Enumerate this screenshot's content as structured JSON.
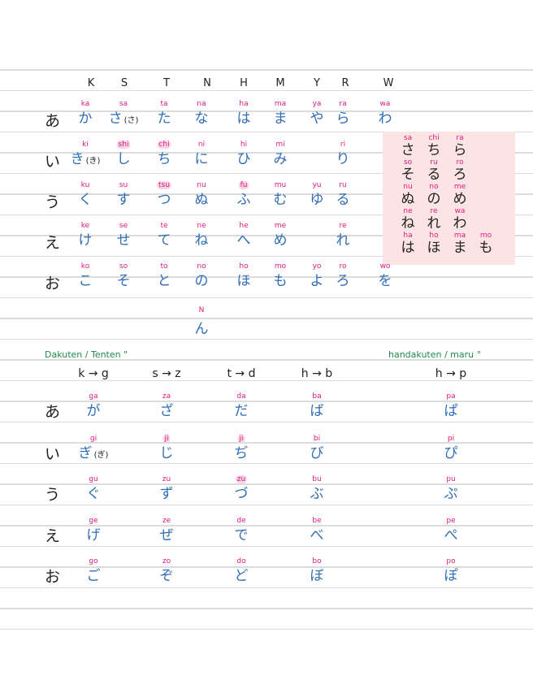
{
  "colors": {
    "kana": "#2f6db5",
    "romaji": "#e0197d",
    "label": "#1f8a4c",
    "highlight_box": "#fde4e4"
  },
  "top_table": {
    "column_headers": [
      "K",
      "S",
      "T",
      "N",
      "H",
      "M",
      "Y",
      "R",
      "W"
    ],
    "rows": [
      {
        "label": "あ",
        "cells": [
          {
            "romaji": "ka",
            "kana": "か"
          },
          {
            "romaji": "sa",
            "kana": "さ",
            "note": "(さ)"
          },
          {
            "romaji": "ta",
            "kana": "た"
          },
          {
            "romaji": "na",
            "kana": "な"
          },
          {
            "romaji": "ha",
            "kana": "は"
          },
          {
            "romaji": "ma",
            "kana": "ま"
          },
          {
            "romaji": "ya",
            "kana": "や"
          },
          {
            "romaji": "ra",
            "kana": "ら"
          },
          {
            "romaji": "wa",
            "kana": "わ"
          }
        ]
      },
      {
        "label": "い",
        "cells": [
          {
            "romaji": "ki",
            "kana": "き",
            "note": "(き)"
          },
          {
            "romaji": "shi",
            "kana": "し",
            "highlight": true
          },
          {
            "romaji": "chi",
            "kana": "ち",
            "highlight": true
          },
          {
            "romaji": "ni",
            "kana": "に"
          },
          {
            "romaji": "hi",
            "kana": "ひ"
          },
          {
            "romaji": "mi",
            "kana": "み"
          },
          null,
          {
            "romaji": "ri",
            "kana": "り"
          },
          null
        ]
      },
      {
        "label": "う",
        "cells": [
          {
            "romaji": "ku",
            "kana": "く"
          },
          {
            "romaji": "su",
            "kana": "す"
          },
          {
            "romaji": "tsu",
            "kana": "つ",
            "highlight": true
          },
          {
            "romaji": "nu",
            "kana": "ぬ"
          },
          {
            "romaji": "fu",
            "kana": "ふ",
            "highlight": true
          },
          {
            "romaji": "mu",
            "kana": "む"
          },
          {
            "romaji": "yu",
            "kana": "ゆ"
          },
          {
            "romaji": "ru",
            "kana": "る"
          },
          null
        ]
      },
      {
        "label": "え",
        "cells": [
          {
            "romaji": "ke",
            "kana": "け"
          },
          {
            "romaji": "se",
            "kana": "せ"
          },
          {
            "romaji": "te",
            "kana": "て"
          },
          {
            "romaji": "ne",
            "kana": "ね"
          },
          {
            "romaji": "he",
            "kana": "へ"
          },
          {
            "romaji": "me",
            "kana": "め"
          },
          null,
          {
            "romaji": "re",
            "kana": "れ"
          },
          null
        ]
      },
      {
        "label": "お",
        "cells": [
          {
            "romaji": "ko",
            "kana": "こ"
          },
          {
            "romaji": "so",
            "kana": "そ"
          },
          {
            "romaji": "to",
            "kana": "と"
          },
          {
            "romaji": "no",
            "kana": "の"
          },
          {
            "romaji": "ho",
            "kana": "ほ"
          },
          {
            "romaji": "mo",
            "kana": "も"
          },
          {
            "romaji": "yo",
            "kana": "よ"
          },
          {
            "romaji": "ro",
            "kana": "ろ"
          },
          {
            "romaji": "wo",
            "kana": "を"
          }
        ]
      }
    ],
    "n_romaji": "N",
    "n_kana": "ん"
  },
  "similar_box": {
    "rows": [
      [
        {
          "romaji": "sa",
          "kana": "さ"
        },
        {
          "romaji": "chi",
          "kana": "ち"
        },
        {
          "romaji": "ra",
          "kana": "ら"
        }
      ],
      [
        {
          "romaji": "so",
          "kana": "そ"
        },
        {
          "romaji": "ru",
          "kana": "る"
        },
        {
          "romaji": "ro",
          "kana": "ろ"
        }
      ],
      [
        {
          "romaji": "nu",
          "kana": "ぬ"
        },
        {
          "romaji": "no",
          "kana": "の"
        },
        {
          "romaji": "me",
          "kana": "め"
        }
      ],
      [
        {
          "romaji": "ne",
          "kana": "ね"
        },
        {
          "romaji": "re",
          "kana": "れ"
        },
        {
          "romaji": "wa",
          "kana": "わ"
        }
      ],
      [
        {
          "romaji": "ha",
          "kana": "は"
        },
        {
          "romaji": "ho",
          "kana": "ほ"
        },
        {
          "romaji": "ma",
          "kana": "ま"
        },
        {
          "romaji": "mo",
          "kana": "も"
        }
      ]
    ]
  },
  "bottom_table": {
    "dakuten_label": "Dakuten / Tenten \"",
    "handakuten_label": "handakuten / maru °",
    "column_headers": [
      "k → g",
      "s → z",
      "t → d",
      "h → b",
      "h → p"
    ],
    "rows": [
      {
        "label": "あ",
        "cells": [
          {
            "romaji": "ga",
            "kana": "が"
          },
          {
            "romaji": "za",
            "kana": "ざ"
          },
          {
            "romaji": "da",
            "kana": "だ"
          },
          {
            "romaji": "ba",
            "kana": "ば"
          },
          {
            "romaji": "pa",
            "kana": "ぱ"
          }
        ]
      },
      {
        "label": "い",
        "cells": [
          {
            "romaji": "gi",
            "kana": "ぎ",
            "note": "(ぎ)"
          },
          {
            "romaji": "ji",
            "kana": "じ",
            "highlight": true
          },
          {
            "romaji": "ji",
            "kana": "ぢ",
            "highlight": true
          },
          {
            "romaji": "bi",
            "kana": "び"
          },
          {
            "romaji": "pi",
            "kana": "ぴ"
          }
        ]
      },
      {
        "label": "う",
        "cells": [
          {
            "romaji": "gu",
            "kana": "ぐ"
          },
          {
            "romaji": "zu",
            "kana": "ず"
          },
          {
            "romaji": "zu",
            "kana": "づ",
            "highlight": true
          },
          {
            "romaji": "bu",
            "kana": "ぶ"
          },
          {
            "romaji": "pu",
            "kana": "ぷ"
          }
        ]
      },
      {
        "label": "え",
        "cells": [
          {
            "romaji": "ge",
            "kana": "げ"
          },
          {
            "romaji": "ze",
            "kana": "ぜ"
          },
          {
            "romaji": "de",
            "kana": "で"
          },
          {
            "romaji": "be",
            "kana": "べ"
          },
          {
            "romaji": "pe",
            "kana": "ぺ"
          }
        ]
      },
      {
        "label": "お",
        "cells": [
          {
            "romaji": "go",
            "kana": "ご"
          },
          {
            "romaji": "zo",
            "kana": "ぞ"
          },
          {
            "romaji": "do",
            "kana": "ど"
          },
          {
            "romaji": "bo",
            "kana": "ぼ"
          },
          {
            "romaji": "po",
            "kana": "ぽ"
          }
        ]
      }
    ]
  }
}
